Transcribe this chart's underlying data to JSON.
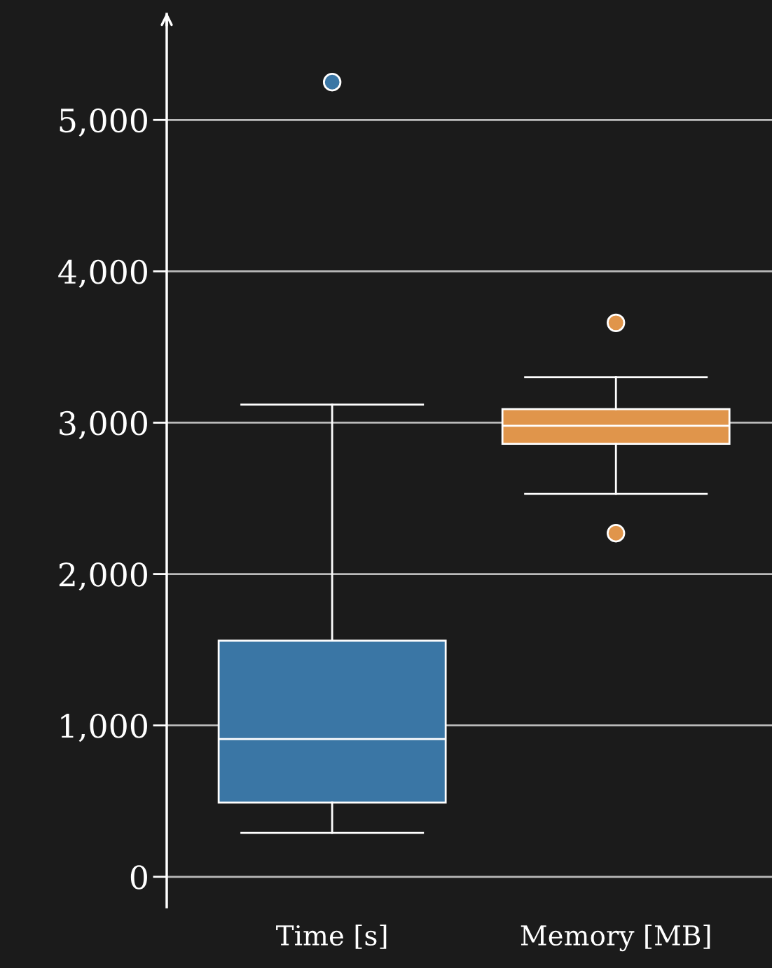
{
  "chart_data": {
    "type": "box",
    "categories": [
      "Time [s]",
      "Memory [MB]"
    ],
    "colors": [
      "#3a76a5",
      "#e0954b"
    ],
    "boxes": [
      {
        "low": 290,
        "q1": 490,
        "median": 910,
        "q3": 1560,
        "high": 3120,
        "outliers": [
          5250
        ]
      },
      {
        "low": 2530,
        "q1": 2860,
        "median": 2980,
        "q3": 3090,
        "high": 3300,
        "outliers": [
          3660,
          2270
        ]
      }
    ],
    "ylim": [
      -200,
      5700
    ],
    "yticks": [
      0,
      {
        "value": 1000,
        "label": "1,000"
      },
      {
        "value": 2000,
        "label": "2,000"
      },
      {
        "value": 3000,
        "label": "3,000"
      },
      {
        "value": 4000,
        "label": "4,000"
      },
      {
        "value": 5000,
        "label": "5,000"
      }
    ],
    "grid": "y"
  }
}
